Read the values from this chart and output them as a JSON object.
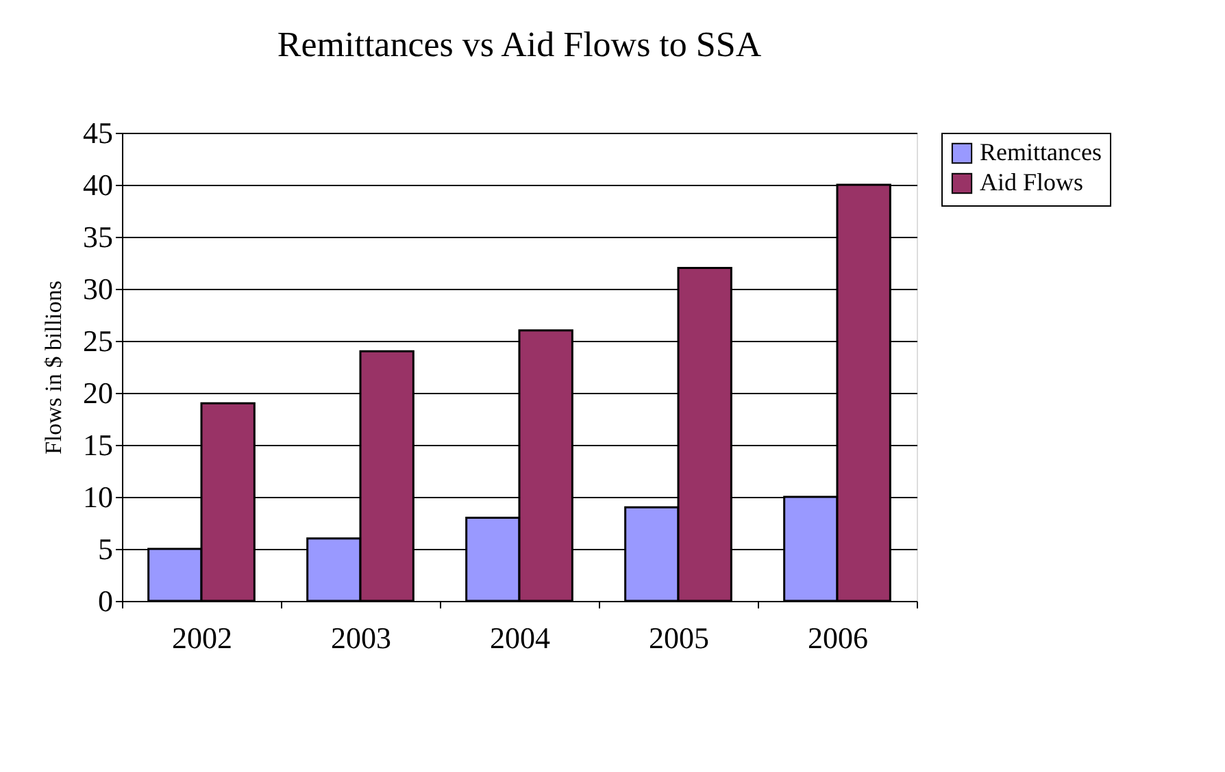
{
  "chart_data": {
    "type": "bar",
    "title": "Remittances vs Aid Flows to SSA",
    "ylabel": "Flows in $ billions",
    "categories": [
      "2002",
      "2003",
      "2004",
      "2005",
      "2006"
    ],
    "series": [
      {
        "name": "Remittances",
        "color": "#9999ff",
        "values": [
          5,
          6,
          8,
          9,
          10
        ]
      },
      {
        "name": "Aid Flows",
        "color": "#993366",
        "values": [
          19,
          24,
          26,
          32,
          40
        ]
      }
    ],
    "ylim": [
      0,
      45
    ],
    "yticks": [
      0,
      5,
      10,
      15,
      20,
      25,
      30,
      35,
      40,
      45
    ],
    "grid": "y",
    "legend": "right"
  }
}
